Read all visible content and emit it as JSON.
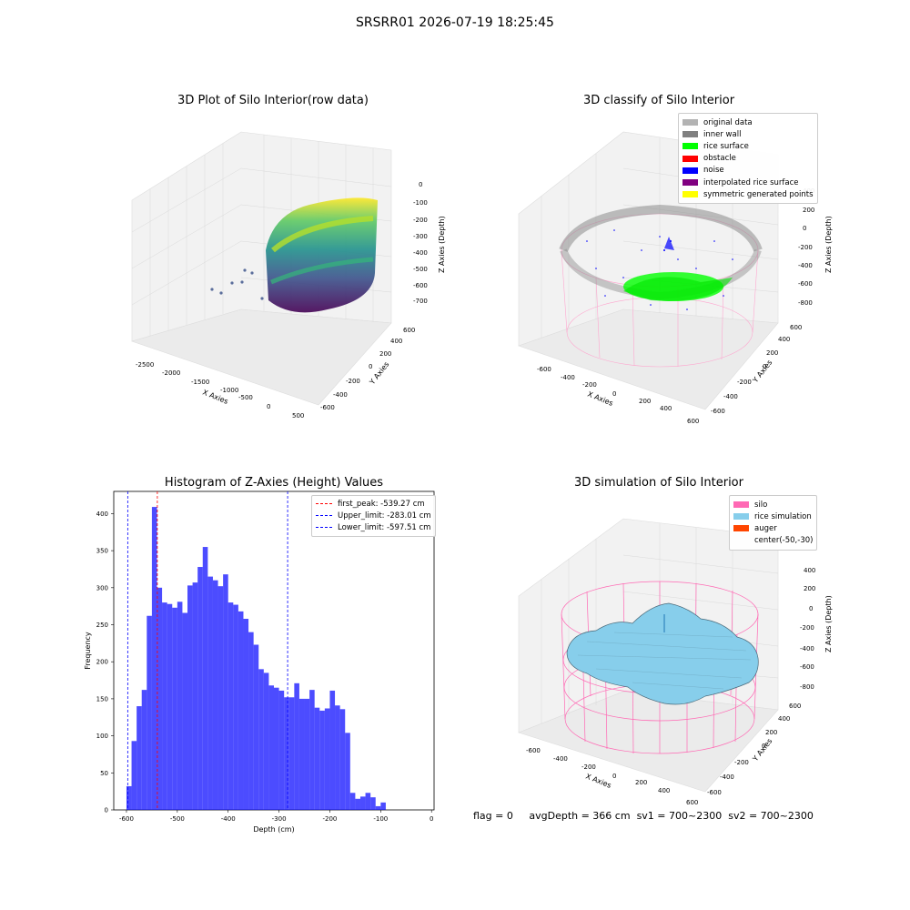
{
  "suptitle": "SRSRR01 2026-07-19 18:25:45",
  "panels": {
    "raw": {
      "title": "3D Plot of Silo Interior(row data)",
      "xlabel": "X Axies",
      "ylabel": "Y Axies",
      "zlabel": "Z Axies (Depth)",
      "xticks": [
        "-2500",
        "-2000",
        "-1500",
        "-1000",
        "-500",
        "0",
        "500"
      ],
      "yticks": [
        "-600",
        "-400",
        "-200",
        "0",
        "200",
        "400",
        "600"
      ],
      "zticks": [
        "0",
        "-100",
        "-200",
        "-300",
        "-400",
        "-500",
        "-600",
        "-700"
      ],
      "colormap": "viridis"
    },
    "classify": {
      "title": "3D classify of Silo Interior",
      "xlabel": "X Axies",
      "ylabel": "Y Axies",
      "zlabel": "Z Axies (Depth)",
      "xticks": [
        "-600",
        "-400",
        "-200",
        "0",
        "200",
        "400",
        "600"
      ],
      "yticks": [
        "-600",
        "-400",
        "-200",
        "0",
        "200",
        "400",
        "600"
      ],
      "zticks": [
        "400",
        "200",
        "0",
        "-200",
        "-400",
        "-600",
        "-800"
      ],
      "legend": [
        {
          "label": "original data",
          "color": "#b3b3b3"
        },
        {
          "label": "inner wall",
          "color": "#808080"
        },
        {
          "label": "rice surface",
          "color": "#00ff00"
        },
        {
          "label": "obstacle",
          "color": "#ff0000"
        },
        {
          "label": "noise",
          "color": "#0000ff"
        },
        {
          "label": "interpolated rice surface",
          "color": "#800080"
        },
        {
          "label": "symmetric generated points",
          "color": "#ffff00"
        }
      ]
    },
    "simulation": {
      "title": "3D simulation of Silo Interior",
      "xlabel": "X Axies",
      "ylabel": "Y Axies",
      "zlabel": "Z Axies (Depth)",
      "xticks": [
        "-600",
        "-400",
        "-200",
        "0",
        "200",
        "400",
        "600"
      ],
      "yticks": [
        "-600",
        "-400",
        "-200",
        "0",
        "200",
        "400",
        "600"
      ],
      "zticks": [
        "400",
        "200",
        "0",
        "-200",
        "-400",
        "-600",
        "-800"
      ],
      "legend": [
        {
          "label": "silo",
          "color": "#ff69b4"
        },
        {
          "label": "rice simulation",
          "color": "#87ceeb"
        },
        {
          "label": "auger",
          "color": "#ff4500"
        },
        {
          "label": "center(-50,-30)",
          "color": ""
        }
      ]
    }
  },
  "chart_data": {
    "type": "bar",
    "title": "Histogram of Z-Axies (Height) Values",
    "xlabel": "Depth (cm)",
    "ylabel": "Frequency",
    "xlim": [
      -625,
      5
    ],
    "ylim": [
      0,
      430
    ],
    "xticks": [
      -600,
      -500,
      -400,
      -300,
      -200,
      -100,
      0
    ],
    "yticks": [
      0,
      50,
      100,
      150,
      200,
      250,
      300,
      350,
      400
    ],
    "bar_color": "#0000ff",
    "bin_width": 10,
    "bin_starts": [
      -600,
      -590,
      -580,
      -570,
      -560,
      -550,
      -540,
      -530,
      -520,
      -510,
      -500,
      -490,
      -480,
      -470,
      -460,
      -450,
      -440,
      -430,
      -420,
      -410,
      -400,
      -390,
      -380,
      -370,
      -360,
      -350,
      -340,
      -330,
      -320,
      -310,
      -300,
      -290,
      -280,
      -270,
      -260,
      -250,
      -240,
      -230,
      -220,
      -210,
      -200,
      -190,
      -180,
      -170,
      -160,
      -150,
      -140,
      -130,
      -120,
      -110,
      -100,
      -90,
      -80,
      -70,
      -60,
      -50,
      -40,
      -30,
      -20
    ],
    "values": [
      32,
      93,
      140,
      162,
      262,
      409,
      300,
      280,
      278,
      273,
      281,
      266,
      303,
      307,
      328,
      355,
      315,
      310,
      302,
      318,
      280,
      277,
      268,
      258,
      240,
      223,
      190,
      185,
      168,
      165,
      161,
      152,
      152,
      171,
      150,
      150,
      162,
      138,
      134,
      137,
      161,
      141,
      136,
      104,
      23,
      15,
      18,
      23,
      17,
      5,
      10
    ],
    "value_starts_at_bin": 0,
    "vlines": [
      {
        "label": "first_peak: -539.27 cm",
        "x": -539.27,
        "color": "#ff0000"
      },
      {
        "label": "Upper_limit: -283.01 cm",
        "x": -283.01,
        "color": "#0000ff"
      },
      {
        "label": "Lower_limit: -597.51 cm",
        "x": -597.51,
        "color": "#0000ff"
      }
    ],
    "legend_position": "top-right"
  },
  "footer": {
    "flag": "flag = 0",
    "avg": "avgDepth = 366 cm",
    "sv1": "sv1 = 700~2300",
    "sv2": "sv2 = 700~2300"
  }
}
